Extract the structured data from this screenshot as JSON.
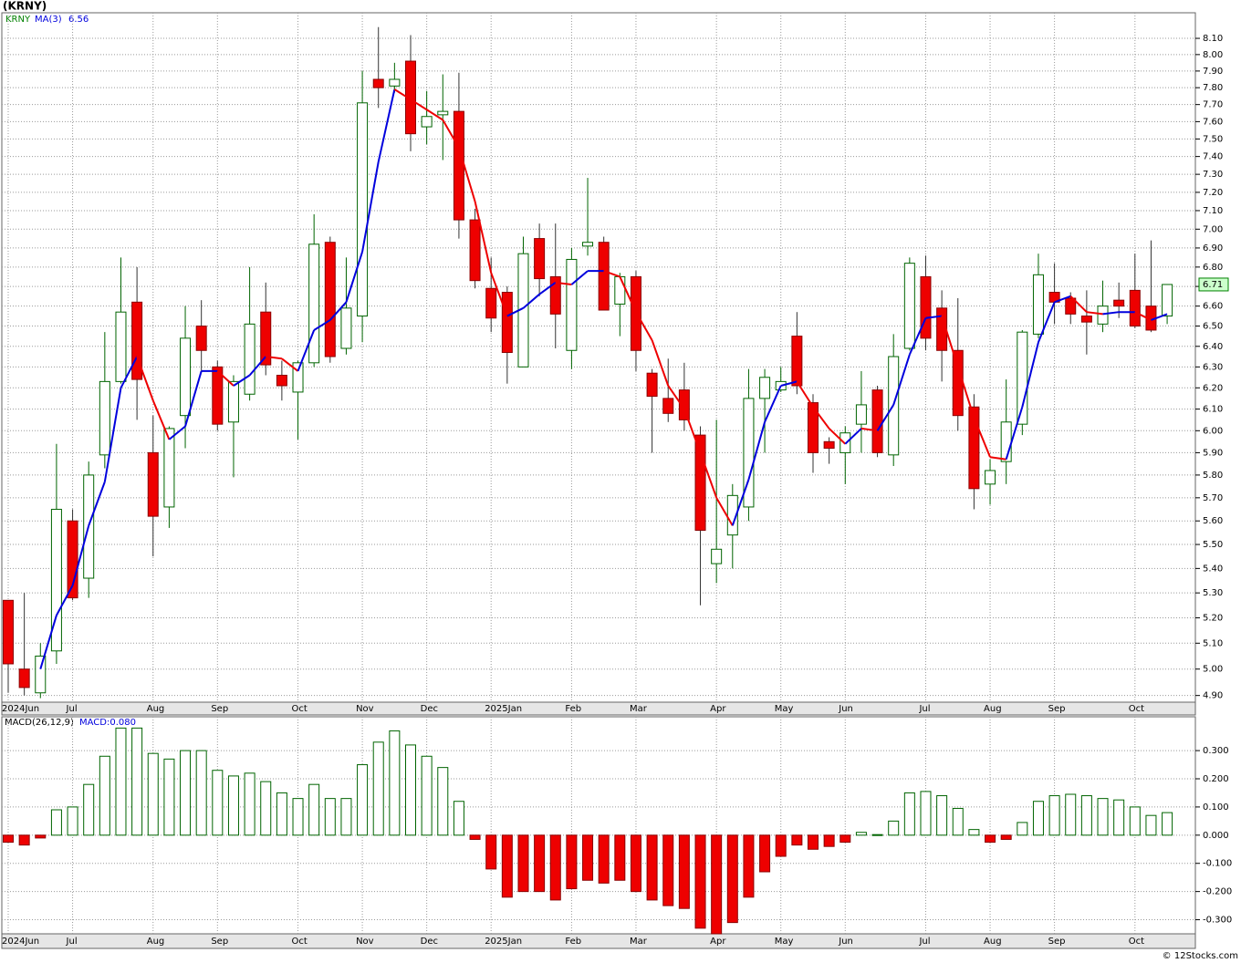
{
  "chart_data": [
    {
      "type": "candlestick",
      "title": "(KRNY)",
      "log_scale": true,
      "grid": true,
      "up_color": "#ffffff",
      "up_edge": "#006400",
      "down_color": "#ee0000",
      "down_edge": "#8b0000",
      "categories": [
        "2024Jun",
        null,
        null,
        null,
        "Jul",
        null,
        null,
        null,
        null,
        "Aug",
        null,
        null,
        null,
        "Sep",
        null,
        null,
        null,
        null,
        "Oct",
        null,
        null,
        null,
        "Nov",
        null,
        null,
        null,
        "Dec",
        null,
        null,
        null,
        "2025Jan",
        null,
        null,
        null,
        null,
        "Feb",
        null,
        null,
        null,
        "Mar",
        null,
        null,
        null,
        null,
        "Apr",
        null,
        null,
        null,
        "May",
        null,
        null,
        null,
        "Jun",
        null,
        null,
        null,
        null,
        "Jul",
        null,
        null,
        null,
        "Aug",
        null,
        null,
        null,
        "Sep",
        null,
        null,
        null,
        null,
        "Oct",
        null,
        null
      ],
      "series": [
        {
          "name": "KRNY",
          "color": "#008000",
          "open": [
            5.27,
            5.0,
            4.91,
            5.07,
            5.6,
            5.36,
            5.89,
            6.23,
            6.62,
            5.9,
            5.66,
            6.07,
            6.5,
            6.3,
            6.04,
            6.17,
            6.57,
            6.26,
            6.18,
            6.32,
            6.93,
            6.39,
            6.55,
            7.85,
            7.81,
            7.96,
            7.57,
            7.64,
            7.66,
            7.05,
            6.69,
            6.67,
            6.3,
            6.95,
            6.75,
            6.38,
            6.91,
            6.93,
            6.61,
            6.75,
            6.27,
            6.15,
            6.19,
            5.98,
            5.42,
            5.54,
            5.66,
            6.15,
            6.19,
            6.45,
            6.13,
            5.95,
            5.9,
            6.03,
            6.19,
            5.89,
            6.39,
            6.75,
            6.59,
            6.38,
            6.11,
            5.76,
            5.86,
            6.03,
            6.46,
            6.67,
            6.64,
            6.55,
            6.51,
            6.63,
            6.68,
            6.6,
            6.55
          ],
          "high": [
            5.27,
            5.3,
            5.1,
            5.94,
            5.65,
            5.86,
            6.47,
            6.85,
            6.8,
            6.07,
            6.02,
            6.6,
            6.63,
            6.33,
            6.26,
            6.8,
            6.72,
            6.33,
            6.33,
            7.08,
            6.96,
            6.85,
            7.9,
            8.17,
            7.95,
            8.12,
            7.78,
            7.88,
            7.89,
            7.11,
            6.85,
            6.7,
            6.96,
            7.03,
            7.03,
            6.9,
            7.28,
            6.96,
            6.77,
            6.78,
            6.29,
            6.34,
            6.32,
            6.02,
            6.05,
            5.76,
            6.29,
            6.29,
            6.3,
            6.57,
            6.17,
            5.97,
            6.02,
            6.28,
            6.21,
            6.46,
            6.85,
            6.86,
            6.68,
            6.64,
            6.17,
            5.87,
            6.24,
            6.48,
            6.87,
            6.82,
            6.67,
            6.68,
            6.73,
            6.72,
            6.87,
            6.94,
            6.71
          ],
          "low": [
            4.91,
            4.9,
            4.89,
            5.02,
            5.27,
            5.28,
            5.83,
            6.22,
            6.05,
            5.45,
            5.57,
            5.92,
            6.28,
            6.0,
            5.79,
            6.14,
            6.26,
            6.14,
            5.96,
            6.3,
            6.32,
            6.36,
            6.42,
            7.68,
            7.77,
            7.43,
            7.47,
            7.38,
            6.95,
            6.69,
            6.47,
            6.22,
            6.3,
            6.65,
            6.39,
            6.29,
            6.86,
            6.58,
            6.45,
            6.28,
            5.9,
            6.04,
            6.0,
            5.25,
            5.34,
            5.4,
            5.6,
            5.9,
            6.18,
            6.17,
            5.81,
            5.85,
            5.76,
            5.9,
            5.88,
            5.84,
            6.38,
            6.38,
            6.23,
            6.0,
            5.65,
            5.67,
            5.76,
            5.98,
            6.44,
            6.51,
            6.51,
            6.36,
            6.47,
            6.54,
            6.49,
            6.47,
            6.51
          ],
          "close": [
            5.02,
            4.93,
            5.05,
            5.65,
            5.28,
            5.8,
            6.23,
            6.57,
            6.24,
            5.62,
            6.01,
            6.44,
            6.38,
            6.03,
            6.23,
            6.51,
            6.31,
            6.21,
            6.32,
            6.92,
            6.35,
            6.59,
            7.71,
            7.8,
            7.85,
            7.53,
            7.63,
            7.66,
            7.05,
            6.73,
            6.54,
            6.37,
            6.87,
            6.74,
            6.56,
            6.84,
            6.93,
            6.58,
            6.75,
            6.38,
            6.16,
            6.08,
            6.05,
            5.56,
            5.48,
            5.71,
            6.15,
            6.25,
            6.23,
            6.21,
            5.9,
            5.92,
            5.99,
            6.12,
            5.9,
            6.35,
            6.82,
            6.44,
            6.38,
            6.07,
            5.74,
            5.82,
            6.04,
            6.47,
            6.76,
            6.62,
            6.56,
            6.52,
            6.6,
            6.6,
            6.5,
            6.48,
            6.71
          ]
        },
        {
          "name": "MA(3)",
          "color": "#0000dd",
          "down_color": "#ee0000",
          "values": [
            null,
            null,
            5.0,
            5.21,
            5.33,
            5.58,
            5.77,
            6.2,
            6.35,
            6.14,
            5.96,
            6.02,
            6.28,
            6.28,
            6.21,
            6.26,
            6.35,
            6.34,
            6.28,
            6.48,
            6.53,
            6.62,
            6.88,
            7.37,
            7.79,
            7.73,
            7.67,
            7.61,
            7.45,
            7.15,
            6.77,
            6.55,
            6.59,
            6.66,
            6.72,
            6.71,
            6.78,
            6.78,
            6.75,
            6.57,
            6.43,
            6.21,
            6.1,
            5.9,
            5.7,
            5.58,
            5.78,
            6.04,
            6.21,
            6.23,
            6.11,
            6.01,
            5.94,
            6.01,
            6.0,
            6.12,
            6.36,
            6.54,
            6.55,
            6.3,
            6.06,
            5.88,
            5.87,
            6.11,
            6.42,
            6.62,
            6.65,
            6.57,
            6.56,
            6.57,
            6.57,
            6.53,
            6.56
          ]
        }
      ],
      "ylim": [
        4.875,
        8.26
      ],
      "yticks": [
        {
          "value": 4.9,
          "label": "4.90"
        },
        {
          "value": 5.0,
          "label": "5.00"
        },
        {
          "value": 5.1,
          "label": "5.10"
        },
        {
          "value": 5.2,
          "label": "5.20"
        },
        {
          "value": 5.3,
          "label": "5.30"
        },
        {
          "value": 5.4,
          "label": "5.40"
        },
        {
          "value": 5.5,
          "label": "5.50"
        },
        {
          "value": 5.6,
          "label": "5.60"
        },
        {
          "value": 5.7,
          "label": "5.70"
        },
        {
          "value": 5.8,
          "label": "5.80"
        },
        {
          "value": 5.9,
          "label": "5.90"
        },
        {
          "value": 6.0,
          "label": "6.00"
        },
        {
          "value": 6.1,
          "label": "6.10"
        },
        {
          "value": 6.2,
          "label": "6.20"
        },
        {
          "value": 6.3,
          "label": "6.30"
        },
        {
          "value": 6.4,
          "label": "6.40"
        },
        {
          "value": 6.5,
          "label": "6.50"
        },
        {
          "value": 6.6,
          "label": "6.60"
        },
        {
          "value": 6.7,
          "label": "6.70"
        },
        {
          "value": 6.8,
          "label": "6.80"
        },
        {
          "value": 6.9,
          "label": "6.90"
        },
        {
          "value": 7.0,
          "label": "7.00"
        },
        {
          "value": 7.1,
          "label": "7.10"
        },
        {
          "value": 7.2,
          "label": "7.20"
        },
        {
          "value": 7.3,
          "label": "7.30"
        },
        {
          "value": 7.4,
          "label": "7.40"
        },
        {
          "value": 7.5,
          "label": "7.50"
        },
        {
          "value": 7.6,
          "label": "7.60"
        },
        {
          "value": 7.7,
          "label": "7.70"
        },
        {
          "value": 7.8,
          "label": "7.80"
        },
        {
          "value": 7.9,
          "label": "7.90"
        },
        {
          "value": 8.0,
          "label": "8.00"
        },
        {
          "value": 8.1,
          "label": "8.10"
        }
      ]
    },
    {
      "type": "bar",
      "title": "MACD(26,12,9)",
      "value_caption": "MACD:0.080",
      "grid": true,
      "up_color": "#ffffff",
      "up_edge": "#006400",
      "down_color": "#ee0000",
      "down_edge": "#8b0000",
      "values": [
        -0.025,
        -0.035,
        -0.01,
        0.09,
        0.1,
        0.18,
        0.28,
        0.38,
        0.38,
        0.29,
        0.27,
        0.3,
        0.3,
        0.23,
        0.21,
        0.22,
        0.19,
        0.15,
        0.13,
        0.18,
        0.13,
        0.13,
        0.25,
        0.33,
        0.37,
        0.32,
        0.28,
        0.24,
        0.12,
        -0.015,
        -0.12,
        -0.22,
        -0.2,
        -0.2,
        -0.23,
        -0.19,
        -0.16,
        -0.17,
        -0.16,
        -0.2,
        -0.23,
        -0.25,
        -0.26,
        -0.33,
        -0.35,
        -0.31,
        -0.22,
        -0.13,
        -0.075,
        -0.035,
        -0.05,
        -0.04,
        -0.025,
        0.01,
        0.002,
        0.05,
        0.15,
        0.155,
        0.14,
        0.095,
        0.02,
        -0.025,
        -0.015,
        0.045,
        0.12,
        0.14,
        0.145,
        0.14,
        0.13,
        0.125,
        0.1,
        0.07,
        0.08
      ],
      "ylim": [
        -0.35,
        0.42
      ],
      "yticks": [
        {
          "value": -0.3,
          "label": "-0.300"
        },
        {
          "value": -0.2,
          "label": "-0.200"
        },
        {
          "value": -0.1,
          "label": "-0.100"
        },
        {
          "value": 0,
          "label": "0.000"
        },
        {
          "value": 0.1,
          "label": "0.100"
        },
        {
          "value": 0.2,
          "label": "0.200"
        },
        {
          "value": 0.3,
          "label": "0.300"
        }
      ]
    }
  ],
  "watermark": "© 12Stocks.com"
}
